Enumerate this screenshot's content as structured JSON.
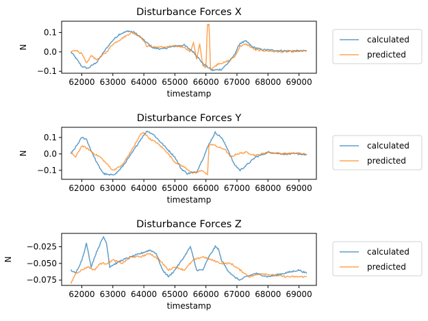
{
  "colors": {
    "calculated": "#1f77b4",
    "predicted": "#ff7f0e"
  },
  "chart_data": [
    {
      "type": "line",
      "title": "Disturbance Forces X",
      "xlabel": "timestamp",
      "ylabel": "N",
      "xlim": [
        61350,
        69560
      ],
      "ylim": [
        -0.11,
        0.158
      ],
      "xticks": [
        62000,
        63000,
        64000,
        65000,
        66000,
        67000,
        68000,
        69000
      ],
      "yticks": [
        -0.1,
        0.0,
        0.1
      ],
      "ytick_labels": [
        "−0.1",
        "0.0",
        "0.1"
      ],
      "legend": {
        "placement": "outside-right"
      },
      "series": [
        {
          "name": "calculated",
          "x": [
            61650,
            61800,
            62000,
            62200,
            62500,
            62800,
            63000,
            63200,
            63500,
            63700,
            64000,
            64300,
            64600,
            65000,
            65300,
            65600,
            65900,
            66200,
            66500,
            66700,
            66900,
            67100,
            67300,
            67500,
            67800,
            68200,
            68600,
            69000,
            69250
          ],
          "y": [
            0.0,
            -0.03,
            -0.075,
            -0.085,
            -0.05,
            0.02,
            0.06,
            0.09,
            0.108,
            0.1,
            0.06,
            0.02,
            0.015,
            0.03,
            0.035,
            0.0,
            -0.06,
            -0.095,
            -0.09,
            -0.06,
            -0.02,
            0.045,
            0.055,
            0.025,
            0.012,
            0.008,
            0.005,
            0.005,
            0.005
          ]
        },
        {
          "name": "predicted",
          "x": [
            61650,
            61800,
            62000,
            62150,
            62300,
            62500,
            62800,
            63000,
            63300,
            63600,
            63900,
            64100,
            64400,
            64700,
            65000,
            65300,
            65500,
            65600,
            65700,
            65800,
            65900,
            66000,
            66050,
            66100,
            66150,
            66250,
            66400,
            66600,
            66800,
            66950,
            67100,
            67300,
            67600,
            68000,
            68400,
            68800,
            69250
          ],
          "y": [
            0.0,
            0.01,
            -0.01,
            -0.06,
            -0.02,
            -0.04,
            0.0,
            0.04,
            0.07,
            0.1,
            0.08,
            0.03,
            0.025,
            0.025,
            0.03,
            0.025,
            0.0,
            0.05,
            -0.04,
            0.04,
            -0.07,
            -0.08,
            0.14,
            0.14,
            -0.09,
            -0.08,
            -0.06,
            -0.055,
            -0.04,
            -0.02,
            0.03,
            0.04,
            0.01,
            0.005,
            0.0,
            0.002,
            0.005
          ]
        }
      ]
    },
    {
      "type": "line",
      "title": "Disturbance Forces Y",
      "xlabel": "timestamp",
      "ylabel": "N",
      "xlim": [
        61350,
        69560
      ],
      "ylim": [
        -0.155,
        0.162
      ],
      "xticks": [
        62000,
        63000,
        64000,
        65000,
        66000,
        67000,
        68000,
        69000
      ],
      "yticks": [
        -0.1,
        0.0,
        0.1
      ],
      "ytick_labels": [
        "−0.1",
        "0.0",
        "0.1"
      ],
      "legend": {
        "placement": "outside-right"
      },
      "series": [
        {
          "name": "calculated",
          "x": [
            61650,
            61800,
            62000,
            62150,
            62300,
            62500,
            62700,
            62900,
            63100,
            63300,
            63600,
            63900,
            64100,
            64300,
            64500,
            64700,
            65000,
            65200,
            65400,
            65700,
            65900,
            66100,
            66300,
            66500,
            66700,
            66900,
            67100,
            67300,
            67600,
            68000,
            68500,
            69000,
            69250
          ],
          "y": [
            0.0,
            0.04,
            0.1,
            0.09,
            0.02,
            -0.06,
            -0.12,
            -0.13,
            -0.12,
            -0.08,
            0.0,
            0.09,
            0.14,
            0.12,
            0.08,
            0.04,
            -0.02,
            -0.09,
            -0.12,
            -0.11,
            -0.03,
            0.06,
            0.13,
            0.1,
            0.03,
            -0.06,
            -0.1,
            -0.07,
            -0.02,
            0.01,
            0.0,
            0.0,
            -0.005
          ]
        },
        {
          "name": "predicted",
          "x": [
            61650,
            61800,
            62000,
            62200,
            62400,
            62600,
            62800,
            63000,
            63300,
            63600,
            63900,
            64000,
            64200,
            64400,
            64700,
            65000,
            65300,
            65600,
            65900,
            66050,
            66100,
            66200,
            66400,
            66600,
            66800,
            67000,
            67300,
            67600,
            68000,
            68500,
            69000,
            69250
          ],
          "y": [
            0.01,
            -0.02,
            0.05,
            0.03,
            0.0,
            -0.02,
            -0.06,
            -0.1,
            -0.07,
            0.02,
            0.12,
            0.13,
            0.09,
            0.07,
            0.02,
            -0.05,
            -0.08,
            -0.12,
            -0.1,
            -0.13,
            0.05,
            0.06,
            0.04,
            0.03,
            -0.02,
            0.0,
            0.01,
            -0.01,
            0.01,
            0.0,
            0.005,
            -0.005
          ]
        }
      ]
    },
    {
      "type": "line",
      "title": "Disturbance Forces Z",
      "xlabel": "timestamp",
      "ylabel": "N",
      "xlim": [
        61350,
        69560
      ],
      "ylim": [
        -0.083,
        -0.005
      ],
      "xticks": [
        62000,
        63000,
        64000,
        65000,
        66000,
        67000,
        68000,
        69000
      ],
      "yticks": [
        -0.075,
        -0.05,
        -0.025
      ],
      "ytick_labels": [
        "−0.075",
        "−0.050",
        "−0.025"
      ],
      "legend": {
        "placement": "outside-right"
      },
      "series": [
        {
          "name": "calculated",
          "x": [
            61650,
            61800,
            62000,
            62150,
            62300,
            62500,
            62700,
            62800,
            62900,
            63100,
            63300,
            63600,
            63900,
            64200,
            64400,
            64600,
            64800,
            65000,
            65300,
            65500,
            65700,
            65900,
            66100,
            66300,
            66400,
            66500,
            66700,
            66900,
            67100,
            67300,
            67600,
            68000,
            68500,
            69000,
            69250
          ],
          "y": [
            -0.06,
            -0.065,
            -0.045,
            -0.02,
            -0.055,
            -0.03,
            -0.01,
            -0.02,
            -0.055,
            -0.05,
            -0.045,
            -0.04,
            -0.035,
            -0.03,
            -0.035,
            -0.06,
            -0.07,
            -0.06,
            -0.04,
            -0.025,
            -0.06,
            -0.06,
            -0.04,
            -0.025,
            -0.028,
            -0.045,
            -0.06,
            -0.07,
            -0.075,
            -0.07,
            -0.065,
            -0.07,
            -0.065,
            -0.06,
            -0.065
          ]
        },
        {
          "name": "predicted",
          "x": [
            61650,
            61800,
            62000,
            62200,
            62400,
            62600,
            62800,
            63000,
            63300,
            63600,
            63900,
            64200,
            64500,
            64800,
            65000,
            65300,
            65600,
            65900,
            66200,
            66500,
            66800,
            67100,
            67400,
            67800,
            68200,
            68600,
            69000,
            69250
          ],
          "y": [
            -0.08,
            -0.065,
            -0.06,
            -0.055,
            -0.06,
            -0.05,
            -0.05,
            -0.045,
            -0.05,
            -0.04,
            -0.04,
            -0.035,
            -0.045,
            -0.06,
            -0.055,
            -0.06,
            -0.045,
            -0.04,
            -0.045,
            -0.05,
            -0.05,
            -0.06,
            -0.07,
            -0.065,
            -0.068,
            -0.07,
            -0.07,
            -0.07
          ]
        }
      ]
    }
  ]
}
